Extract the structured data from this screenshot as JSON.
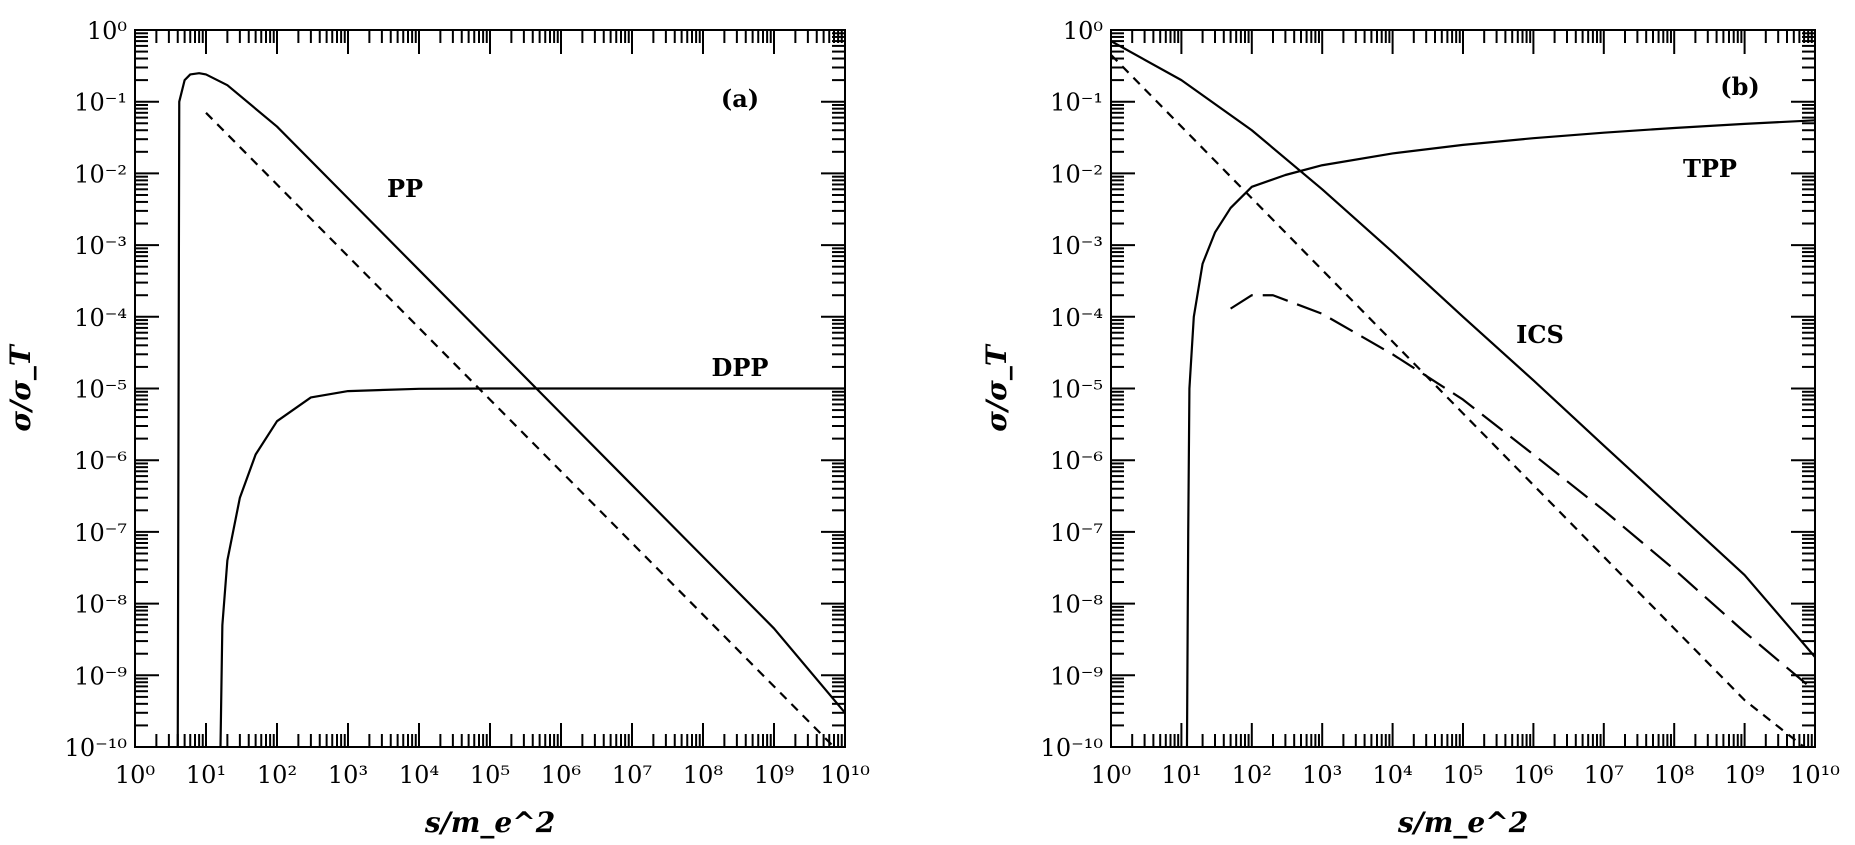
{
  "chart_data": [
    {
      "type": "line",
      "panel_label": "(a)",
      "xlabel": "s/m_e^2",
      "ylabel": "σ/σ_T",
      "x_scale": "log",
      "y_scale": "log",
      "xlim": [
        1,
        10000000000
      ],
      "ylim": [
        1e-10,
        1
      ],
      "x_tick_exponents": [
        0,
        1,
        2,
        3,
        4,
        5,
        6,
        7,
        8,
        9,
        10
      ],
      "y_tick_exponents": [
        0,
        -1,
        -2,
        -3,
        -4,
        -5,
        -6,
        -7,
        -8,
        -9,
        -10
      ],
      "annotations": [
        {
          "text": "PP",
          "series": "PP"
        },
        {
          "text": "DPP",
          "series": "DPP"
        }
      ],
      "series": [
        {
          "name": "PP",
          "style": "solid",
          "x": [
            4,
            4.2,
            5,
            6,
            8,
            10,
            20,
            100,
            1000,
            10000,
            100000,
            1000000,
            10000000,
            100000000,
            1000000000,
            10000000000
          ],
          "y": [
            1e-10,
            0.1,
            0.2,
            0.24,
            0.25,
            0.24,
            0.17,
            0.045,
            0.0045,
            0.00045,
            4.5e-05,
            4.5e-06,
            4.5e-07,
            4.5e-08,
            4.5e-09,
            3e-10
          ]
        },
        {
          "name": "DPP",
          "style": "solid",
          "x": [
            16,
            17,
            20,
            30,
            50,
            100,
            300,
            1000,
            10000,
            100000,
            1000000,
            10000000,
            100000000,
            1000000000,
            10000000000
          ],
          "y": [
            1e-10,
            5e-09,
            4e-08,
            3e-07,
            1.2e-06,
            3.5e-06,
            7.5e-06,
            9.2e-06,
            9.9e-06,
            1e-05,
            1e-05,
            1e-05,
            1e-05,
            1e-05,
            1e-05
          ]
        },
        {
          "style": "dashed",
          "x": [
            10,
            100,
            1000,
            10000,
            100000,
            1000000,
            10000000,
            100000000,
            1000000000,
            7000000000
          ],
          "y": [
            0.07,
            0.007,
            0.0007,
            7e-05,
            7e-06,
            7e-07,
            7e-08,
            7e-09,
            7e-10,
            1e-10
          ]
        }
      ]
    },
    {
      "type": "line",
      "panel_label": "(b)",
      "xlabel": "s/m_e^2",
      "ylabel": "σ/σ_T",
      "x_scale": "log",
      "y_scale": "log",
      "xlim": [
        1,
        10000000000
      ],
      "ylim": [
        1e-10,
        1
      ],
      "x_tick_exponents": [
        0,
        1,
        2,
        3,
        4,
        5,
        6,
        7,
        8,
        9,
        10
      ],
      "y_tick_exponents": [
        0,
        -1,
        -2,
        -3,
        -4,
        -5,
        -6,
        -7,
        -8,
        -9,
        -10
      ],
      "annotations": [
        {
          "text": "TPP",
          "series": "TPP"
        },
        {
          "text": "ICS",
          "series": "ICS"
        }
      ],
      "series": [
        {
          "name": "ICS",
          "style": "solid",
          "x": [
            1,
            10,
            100,
            1000,
            10000,
            100000,
            1000000,
            10000000,
            100000000,
            1000000000,
            10000000000
          ],
          "y": [
            0.7,
            0.2,
            0.04,
            0.006,
            0.0008,
            0.0001,
            1.3e-05,
            1.6e-06,
            2e-07,
            2.5e-08,
            1.8e-09
          ]
        },
        {
          "name": "TPP",
          "style": "solid",
          "x": [
            12,
            12.5,
            13,
            15,
            20,
            30,
            50,
            100,
            300,
            1000,
            10000,
            100000,
            1000000,
            10000000,
            100000000,
            1000000000,
            10000000000
          ],
          "y": [
            1e-10,
            1e-07,
            1e-05,
            0.0001,
            0.00055,
            0.0015,
            0.0033,
            0.0065,
            0.0095,
            0.013,
            0.019,
            0.025,
            0.031,
            0.037,
            0.043,
            0.049,
            0.055
          ]
        },
        {
          "style": "long-dashed",
          "x": [
            50,
            100,
            200,
            1000,
            10000,
            100000,
            1000000,
            10000000,
            100000000,
            1000000000,
            10000000000
          ],
          "y": [
            0.00013,
            0.0002,
            0.0002,
            0.00011,
            3e-05,
            7e-06,
            1.2e-06,
            2e-07,
            3e-08,
            4e-09,
            6e-10
          ]
        },
        {
          "style": "dashed",
          "x": [
            1,
            10,
            100,
            1000,
            10000,
            100000,
            1000000,
            10000000,
            100000000,
            1000000000,
            7000000000
          ],
          "y": [
            0.45,
            0.045,
            0.0045,
            0.00045,
            4.5e-05,
            4.5e-06,
            4.5e-07,
            4.5e-08,
            4.5e-09,
            4.5e-10,
            1e-10
          ]
        }
      ]
    }
  ]
}
